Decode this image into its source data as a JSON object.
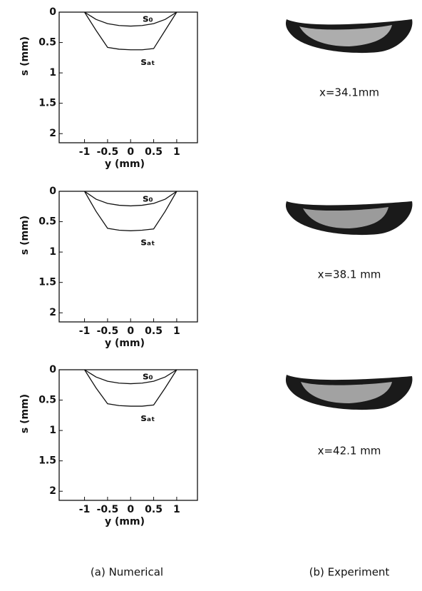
{
  "chart_data": [
    {
      "type": "line",
      "xlabel": "y (mm)",
      "ylabel": "s (mm)",
      "xlim": [
        -1.55,
        1.45
      ],
      "ylim": [
        0,
        2.15
      ],
      "y_inverted": true,
      "xticks": [
        -1,
        -0.5,
        0,
        0.5,
        1
      ],
      "yticks": [
        0,
        0.5,
        1,
        1.5,
        2
      ],
      "x": [
        -1.0,
        -0.75,
        -0.5,
        -0.25,
        0,
        0.25,
        0.5,
        0.75,
        1.0
      ],
      "series": [
        {
          "name": "s₀",
          "color": "#111111",
          "values": [
            0,
            0.12,
            0.19,
            0.22,
            0.23,
            0.22,
            0.19,
            0.12,
            0
          ]
        },
        {
          "name": "sₐₜ",
          "color": "#111111",
          "values": [
            0,
            0.3,
            0.58,
            0.61,
            0.62,
            0.62,
            0.6,
            0.3,
            0
          ]
        }
      ]
    },
    {
      "type": "line",
      "xlabel": "y (mm)",
      "ylabel": "s (mm)",
      "xlim": [
        -1.55,
        1.45
      ],
      "ylim": [
        0,
        2.15
      ],
      "y_inverted": true,
      "xticks": [
        -1,
        -0.5,
        0,
        0.5,
        1
      ],
      "yticks": [
        0,
        0.5,
        1,
        1.5,
        2
      ],
      "x": [
        -1.0,
        -0.75,
        -0.5,
        -0.25,
        0,
        0.25,
        0.5,
        0.75,
        1.0
      ],
      "series": [
        {
          "name": "s₀",
          "color": "#111111",
          "values": [
            0,
            0.13,
            0.2,
            0.23,
            0.24,
            0.23,
            0.2,
            0.13,
            0
          ]
        },
        {
          "name": "sₐₜ",
          "color": "#111111",
          "values": [
            0,
            0.33,
            0.61,
            0.64,
            0.65,
            0.64,
            0.62,
            0.33,
            0
          ]
        }
      ]
    },
    {
      "type": "line",
      "xlabel": "y (mm)",
      "ylabel": "s (mm)",
      "xlim": [
        -1.55,
        1.45
      ],
      "ylim": [
        0,
        2.15
      ],
      "y_inverted": true,
      "xticks": [
        -1,
        -0.5,
        0,
        0.5,
        1
      ],
      "yticks": [
        0,
        0.5,
        1,
        1.5,
        2
      ],
      "x": [
        -1.0,
        -0.75,
        -0.5,
        -0.25,
        0,
        0.25,
        0.5,
        0.75,
        1.0
      ],
      "series": [
        {
          "name": "s₀",
          "color": "#111111",
          "values": [
            0,
            0.12,
            0.19,
            0.22,
            0.23,
            0.22,
            0.19,
            0.12,
            0
          ]
        },
        {
          "name": "sₐₜ",
          "color": "#111111",
          "values": [
            0,
            0.3,
            0.56,
            0.59,
            0.6,
            0.6,
            0.58,
            0.3,
            0
          ]
        }
      ]
    }
  ],
  "experiment": [
    {
      "label": "x=34.1mm"
    },
    {
      "label": "x=38.1 mm"
    },
    {
      "label": "x=42.1 mm"
    }
  ],
  "captions": {
    "numerical": "(a) Numerical",
    "experiment": "(b) Experiment"
  }
}
